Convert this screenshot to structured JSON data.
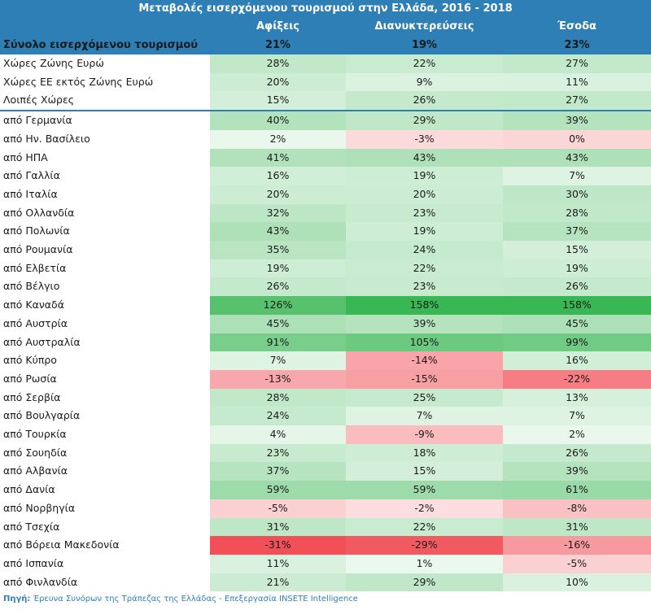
{
  "title": "Μεταβολές εισερχόμενου τουρισμού στην Ελλάδα, 2016 - 2018",
  "columns": [
    "Αφίξεις",
    "Διανυκτερεύσεις",
    "Έσοδα"
  ],
  "total": {
    "label": "Σύνολο εισερχόμενου τουρισμού",
    "values": [
      "21%",
      "19%",
      "23%"
    ]
  },
  "source_label": "Πηγή:",
  "source_text": "Έρευνα Συνόρων της Τράπεζας της Ελλάδας - Επεξεργασία INSETE Intelligence",
  "colors": {
    "header": "#2e7fb5",
    "positive": "#2eb24a",
    "negative": "#f0424b"
  },
  "chart_data": {
    "type": "table",
    "title": "Μεταβολές εισερχόμενου τουρισμού στην Ελλάδα, 2016 - 2018",
    "columns": [
      "Αφίξεις",
      "Διανυκτερεύσεις",
      "Έσοδα"
    ],
    "rows": [
      {
        "label": "Χώρες Ζώνης Ευρώ",
        "values": [
          28,
          22,
          27
        ]
      },
      {
        "label": "Χώρες ΕΕ εκτός Ζώνης Ευρώ",
        "values": [
          20,
          9,
          11
        ]
      },
      {
        "label": "Λοιπές Χώρες",
        "values": [
          15,
          26,
          27
        ]
      },
      {
        "label": "από Γερμανία",
        "values": [
          40,
          29,
          39
        ]
      },
      {
        "label": "από Ην. Βασίλειο",
        "values": [
          2,
          -3,
          0
        ]
      },
      {
        "label": "από ΗΠΑ",
        "values": [
          41,
          43,
          43
        ]
      },
      {
        "label": "από Γαλλία",
        "values": [
          16,
          19,
          7
        ]
      },
      {
        "label": "από Ιταλία",
        "values": [
          20,
          20,
          30
        ]
      },
      {
        "label": "από Ολλανδία",
        "values": [
          32,
          23,
          28
        ]
      },
      {
        "label": "από Πολωνία",
        "values": [
          43,
          19,
          37
        ]
      },
      {
        "label": "από Ρουμανία",
        "values": [
          35,
          24,
          15
        ]
      },
      {
        "label": "από Ελβετία",
        "values": [
          19,
          22,
          19
        ]
      },
      {
        "label": "από Βέλγιο",
        "values": [
          26,
          23,
          26
        ]
      },
      {
        "label": "από Καναδά",
        "values": [
          126,
          158,
          158
        ]
      },
      {
        "label": "από Αυστρία",
        "values": [
          45,
          39,
          45
        ]
      },
      {
        "label": "από Αυστραλία",
        "values": [
          91,
          105,
          99
        ]
      },
      {
        "label": "από Κύπρο",
        "values": [
          7,
          -14,
          16
        ]
      },
      {
        "label": "από Ρωσία",
        "values": [
          -13,
          -15,
          -22
        ]
      },
      {
        "label": "από Σερβία",
        "values": [
          28,
          25,
          13
        ]
      },
      {
        "label": "από Βουλγαρία",
        "values": [
          24,
          7,
          7
        ]
      },
      {
        "label": "από Τουρκία",
        "values": [
          4,
          -9,
          2
        ]
      },
      {
        "label": "από Σουηδία",
        "values": [
          23,
          18,
          26
        ]
      },
      {
        "label": "από Αλβανία",
        "values": [
          37,
          15,
          39
        ]
      },
      {
        "label": "από Δανία",
        "values": [
          59,
          59,
          61
        ]
      },
      {
        "label": "από Νορβηγία",
        "values": [
          -5,
          -2,
          -8
        ]
      },
      {
        "label": "από Τσεχία",
        "values": [
          31,
          22,
          31
        ]
      },
      {
        "label": "από Βόρεια Μακεδονία",
        "values": [
          -31,
          -29,
          -16
        ]
      },
      {
        "label": "από Ισπανία",
        "values": [
          11,
          1,
          -5
        ]
      },
      {
        "label": "από Φινλανδία",
        "values": [
          21,
          29,
          10
        ]
      }
    ]
  }
}
